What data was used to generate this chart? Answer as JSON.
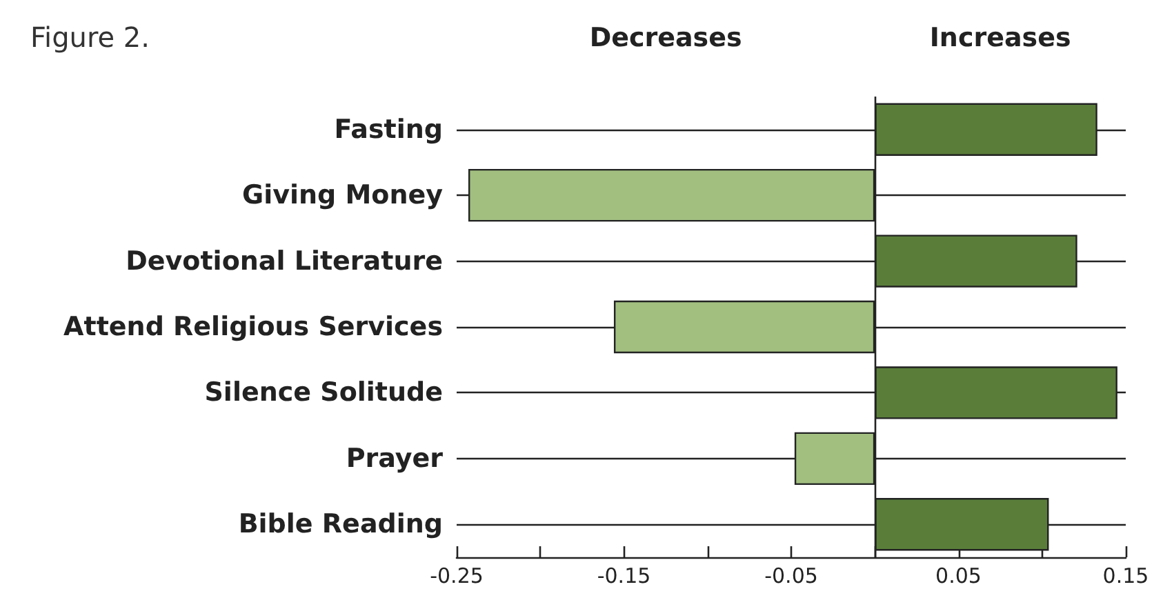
{
  "chart_data": {
    "type": "bar",
    "orientation": "horizontal",
    "title": "Figure 2.",
    "annotations": [
      "Decreases",
      "Increases"
    ],
    "categories": [
      "Fasting",
      "Giving Money",
      "Devotional Literature",
      "Attend Religious Services",
      "Silence Solitude",
      "Prayer",
      "Bible Reading"
    ],
    "values": [
      0.133,
      -0.243,
      0.121,
      -0.156,
      0.145,
      -0.048,
      0.104
    ],
    "colors": [
      "#5a7e3a",
      "#a2bf80",
      "#5a7e3a",
      "#a2bf80",
      "#5a7e3a",
      "#a2bf80",
      "#5a7e3a"
    ],
    "xlim": [
      -0.25,
      0.15
    ],
    "xticks": [
      -0.25,
      {
        "value": -0.2,
        "label": null
      },
      -0.15,
      {
        "value": -0.1,
        "label": null
      },
      -0.05,
      {
        "value": 0,
        "label": null
      },
      0.05,
      {
        "value": 0.1,
        "label": null
      },
      0.15
    ],
    "ref_lines": [
      {
        "axis": "x",
        "value": 0
      }
    ],
    "grid": "y"
  }
}
